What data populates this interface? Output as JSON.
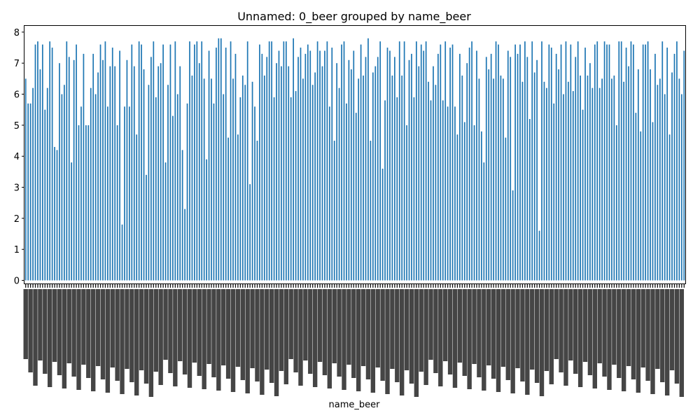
{
  "chart_data": {
    "type": "bar",
    "title": "Unnamed: 0_beer grouped by name_beer",
    "xlabel": "name_beer",
    "ylabel": "",
    "ylim": [
      -0.1,
      8.2
    ],
    "yticks": [
      "0",
      "1",
      "2",
      "3",
      "4",
      "5",
      "6",
      "7",
      "8"
    ],
    "bar_color": "#1f77b4",
    "grid": false,
    "legend": "none",
    "tick_labels_legible": false,
    "values": [
      6.5,
      5.7,
      5.7,
      6.2,
      7.6,
      7.7,
      6.8,
      7.6,
      5.5,
      6.2,
      7.7,
      7.5,
      4.3,
      4.2,
      7.0,
      6.0,
      6.3,
      7.7,
      7.2,
      3.8,
      7.1,
      7.6,
      5.0,
      5.6,
      7.3,
      5.0,
      5.0,
      6.2,
      7.3,
      6.0,
      6.7,
      7.6,
      7.1,
      7.7,
      5.6,
      6.9,
      7.5,
      6.9,
      5.0,
      7.4,
      1.8,
      5.6,
      7.1,
      5.6,
      7.6,
      6.9,
      4.7,
      7.7,
      7.6,
      6.8,
      3.4,
      6.3,
      7.2,
      7.7,
      5.9,
      6.9,
      7.0,
      7.6,
      3.8,
      6.3,
      7.6,
      5.3,
      7.7,
      6.0,
      6.9,
      4.2,
      2.3,
      5.7,
      7.7,
      6.6,
      7.6,
      7.7,
      7.0,
      7.7,
      6.5,
      3.9,
      7.4,
      6.5,
      5.7,
      7.5,
      7.8,
      7.8,
      6.0,
      7.5,
      4.6,
      7.7,
      6.5,
      7.3,
      4.7,
      5.9,
      6.6,
      6.3,
      7.7,
      3.1,
      6.4,
      5.6,
      4.5,
      7.6,
      7.3,
      6.6,
      7.2,
      7.7,
      7.7,
      5.9,
      7.0,
      7.4,
      6.9,
      7.7,
      7.7,
      6.9,
      5.9,
      7.8,
      6.1,
      7.2,
      7.5,
      6.5,
      7.3,
      7.6,
      7.4,
      6.3,
      6.7,
      7.7,
      7.4,
      6.9,
      7.4,
      7.7,
      5.6,
      7.5,
      4.5,
      7.0,
      6.2,
      7.6,
      7.7,
      5.7,
      7.1,
      6.8,
      7.4,
      5.4,
      6.5,
      7.6,
      6.6,
      7.2,
      7.8,
      4.5,
      6.7,
      6.9,
      7.2,
      7.7,
      3.6,
      5.8,
      7.5,
      7.4,
      6.6,
      7.2,
      5.9,
      7.7,
      6.6,
      7.7,
      5.0,
      7.1,
      7.3,
      5.9,
      7.7,
      6.9,
      7.6,
      7.4,
      7.7,
      6.4,
      5.8,
      6.9,
      6.3,
      7.3,
      7.6,
      5.8,
      7.7,
      5.6,
      7.5,
      7.6,
      5.6,
      4.7,
      7.3,
      6.6,
      5.1,
      7.0,
      7.5,
      7.7,
      5.0,
      7.4,
      6.5,
      4.8,
      3.8,
      7.2,
      6.8,
      7.3,
      6.5,
      7.7,
      7.6,
      6.6,
      6.5,
      4.6,
      7.4,
      7.2,
      2.9,
      7.6,
      7.3,
      7.6,
      6.4,
      7.7,
      7.2,
      5.2,
      7.7,
      6.7,
      7.1,
      1.6,
      7.7,
      6.4,
      6.2,
      7.6,
      7.5,
      5.7,
      7.3,
      6.8,
      7.6,
      6.0,
      7.7,
      6.4,
      7.6,
      6.1,
      7.2,
      7.7,
      6.6,
      5.5,
      7.5,
      6.6,
      7.0,
      6.2,
      7.6,
      7.7,
      6.2,
      6.5,
      7.7,
      7.6,
      7.6,
      6.5,
      6.6,
      5.0,
      7.7,
      7.7,
      6.4,
      7.5,
      6.9,
      7.7,
      7.6,
      5.4,
      6.8,
      4.8,
      7.6,
      7.6,
      7.7,
      6.8,
      5.1,
      7.3,
      6.3,
      6.5,
      7.7,
      6.0,
      7.5,
      4.7,
      6.7,
      7.3,
      7.7,
      6.5,
      6.0,
      7.4
    ]
  }
}
